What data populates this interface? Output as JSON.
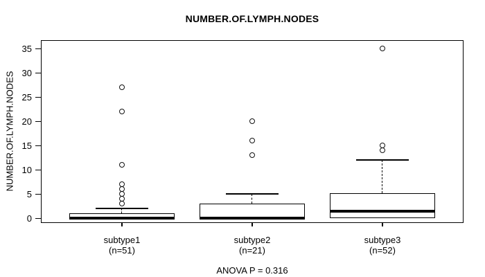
{
  "chart_data": {
    "type": "boxplot",
    "title": "NUMBER.OF.LYMPH.NODES",
    "ylabel": "NUMBER.OF.LYMPH.NODES",
    "ylim": [
      0,
      35
    ],
    "yticks": [
      0,
      5,
      10,
      15,
      20,
      25,
      30,
      35
    ],
    "grid": false,
    "annotation": "ANOVA P = 0.316",
    "groups": [
      {
        "label": "subtype1",
        "sublabel": "(n=51)",
        "n": 51,
        "whisker_low": 0,
        "q1": 0,
        "median": 0,
        "q3": 1,
        "whisker_high": 2,
        "outliers": [
          3,
          4,
          5,
          6,
          7,
          11,
          22,
          27
        ]
      },
      {
        "label": "subtype2",
        "sublabel": "(n=21)",
        "n": 21,
        "whisker_low": 0,
        "q1": 0,
        "median": 0,
        "q3": 3,
        "whisker_high": 5,
        "outliers": [
          13,
          16,
          20
        ]
      },
      {
        "label": "subtype3",
        "sublabel": "(n=52)",
        "n": 52,
        "whisker_low": 0,
        "q1": 0,
        "median": 1.5,
        "q3": 5.25,
        "whisker_high": 12,
        "outliers": [
          14,
          15,
          35
        ]
      }
    ]
  }
}
